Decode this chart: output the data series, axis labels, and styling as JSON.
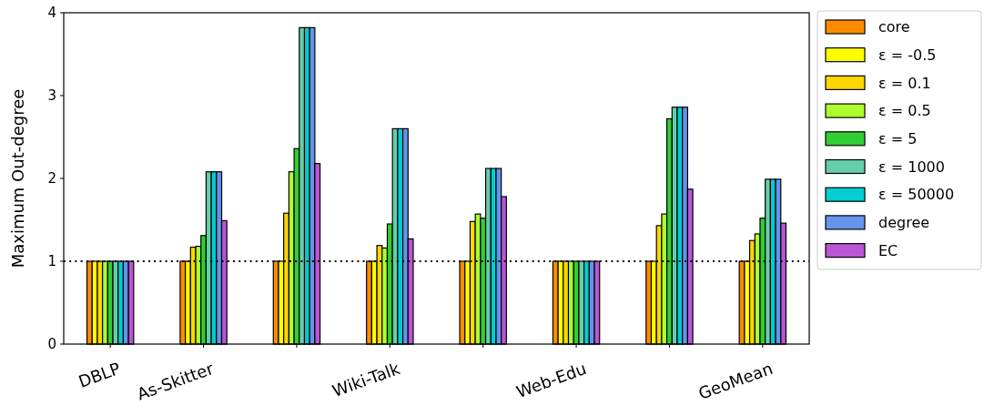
{
  "chart_data": {
    "type": "bar",
    "ylabel": "Maximum Out-degree",
    "categories": [
      "DBLP",
      "As-Skitter",
      null,
      "Wiki-Talk",
      null,
      "Web-Edu",
      null,
      "GeoMean"
    ],
    "series": [
      {
        "name": "core",
        "color": "#ff8c00",
        "values": [
          1,
          1,
          1,
          1,
          1,
          1,
          1,
          1
        ]
      },
      {
        "name": "ε = -0.5",
        "color": "#ffff00",
        "values": [
          1,
          1,
          1,
          1,
          1,
          1,
          1,
          1
        ]
      },
      {
        "name": "ε = 0.1",
        "color": "#ffd700",
        "values": [
          1,
          1.17,
          1.58,
          1.19,
          1.48,
          1,
          1.43,
          1.25
        ]
      },
      {
        "name": "ε = 0.5",
        "color": "#adff2f",
        "values": [
          1,
          1.18,
          2.08,
          1.16,
          1.57,
          1,
          1.57,
          1.33
        ]
      },
      {
        "name": "ε = 5",
        "color": "#32cd32",
        "values": [
          1,
          1.31,
          2.36,
          1.45,
          1.52,
          1,
          2.72,
          1.52
        ]
      },
      {
        "name": "ε = 1000",
        "color": "#66cdaa",
        "values": [
          1,
          2.08,
          3.82,
          2.6,
          2.12,
          1,
          2.86,
          1.99
        ]
      },
      {
        "name": "ε = 50000",
        "color": "#00ced1",
        "values": [
          1,
          2.08,
          3.82,
          2.6,
          2.12,
          1,
          2.86,
          1.99
        ]
      },
      {
        "name": "degree",
        "color": "#6495ed",
        "values": [
          1,
          2.08,
          3.82,
          2.6,
          2.12,
          1,
          2.86,
          1.99
        ]
      },
      {
        "name": "EC",
        "color": "#ba55d3",
        "values": [
          1,
          1.49,
          2.18,
          1.27,
          1.78,
          1,
          1.87,
          1.46
        ]
      }
    ],
    "ylim": [
      0,
      4
    ],
    "yticks": [
      0,
      1,
      2,
      3,
      4
    ],
    "grid": false,
    "legend": "right",
    "ref_lines": [
      {
        "axis": "y",
        "value": 1,
        "color": "#000000",
        "line_style": "dotted"
      }
    ]
  }
}
